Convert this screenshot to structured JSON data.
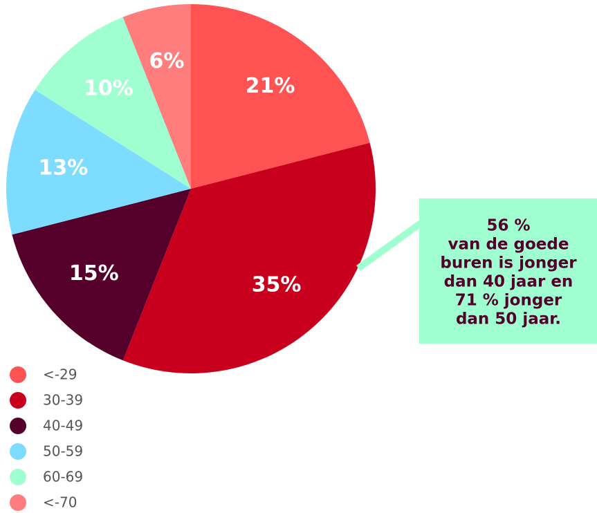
{
  "chart_data": {
    "type": "pie",
    "categories": [
      "<-29",
      "30-39",
      "40-49",
      "50-59",
      "60-69",
      "<-70"
    ],
    "values": [
      21,
      35,
      15,
      13,
      10,
      6
    ],
    "value_labels": [
      "21%",
      "35%",
      "15%",
      "13%",
      "10%",
      "6%"
    ],
    "colors": [
      "#ff5252",
      "#c8001e",
      "#54002a",
      "#7ddcff",
      "#a0ffd0",
      "#ff7d7d"
    ],
    "annotation": [
      "56 %",
      "van de goede",
      "buren is jonger",
      "dan 40 jaar en",
      "71 % jonger",
      "dan 50 jaar."
    ],
    "annotation_color": "#a0ffd0"
  }
}
